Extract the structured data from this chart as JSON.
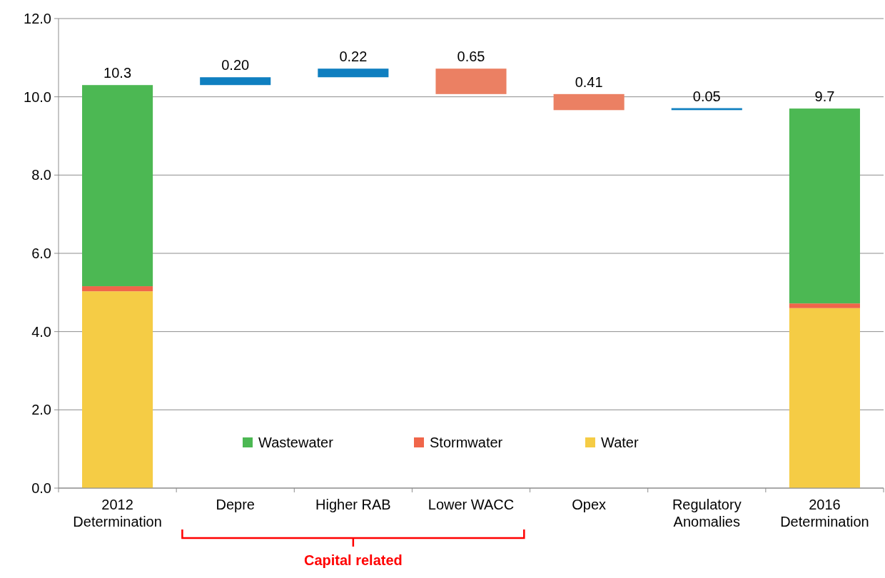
{
  "chart_data": {
    "type": "bar",
    "stacked": true,
    "categories": [
      "2012 Determination",
      "Depre",
      "Higher RAB",
      "Lower WACC",
      "Opex",
      "Regulatory Anomalies",
      "2016 Determination"
    ],
    "series": [
      {
        "name": "Water",
        "color": "#f5cc45",
        "values": [
          5.03,
          null,
          null,
          null,
          null,
          null,
          4.6
        ]
      },
      {
        "name": "Stormwater",
        "color": "#f0664a",
        "values": [
          0.13,
          null,
          null,
          null,
          null,
          null,
          0.12
        ]
      },
      {
        "name": "Wastewater",
        "color": "#4cb853",
        "values": [
          5.14,
          null,
          null,
          null,
          null,
          null,
          4.98
        ]
      },
      {
        "colors": [
          null,
          "#0f7fc0",
          "#0f7fc0",
          "#eb8063",
          "#eb8063",
          "#0f7fc0",
          null
        ],
        "base": [
          null,
          10.3,
          10.5,
          10.07,
          9.66,
          9.66,
          null
        ],
        "values": [
          null,
          0.2,
          0.22,
          0.65,
          0.41,
          0.05,
          null
        ]
      }
    ],
    "totals": [
      "10.3",
      "0.20",
      "0.22",
      "0.65",
      "0.41",
      "0.05",
      "9.7"
    ],
    "ylim": [
      0,
      12
    ],
    "yticks": [
      {
        "value": 0,
        "label": "0.0"
      },
      {
        "value": 2,
        "label": "2.0"
      },
      {
        "value": 4,
        "label": "4.0"
      },
      {
        "value": 6,
        "label": "6.0"
      },
      {
        "value": 8,
        "label": "8.0"
      },
      {
        "value": 10,
        "label": "10.0"
      },
      {
        "value": 12,
        "label": "12.0"
      }
    ],
    "grid": "y",
    "legend": "bottom",
    "annotations": [
      "Capital related"
    ]
  }
}
